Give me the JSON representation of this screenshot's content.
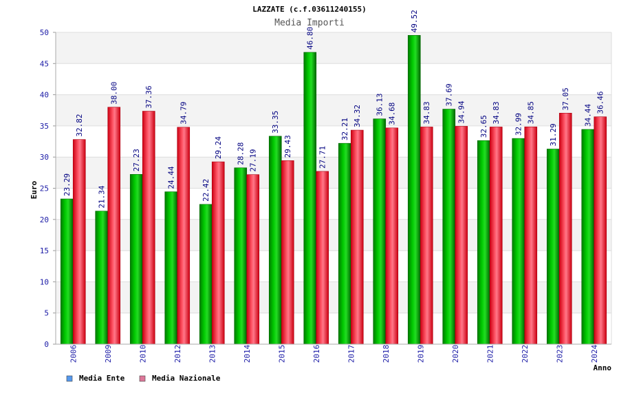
{
  "chart_data": {
    "type": "bar",
    "title": "LAZZATE (c.f.03611240155)",
    "subtitle": "Media Importi",
    "xlabel": "Anno",
    "ylabel": "Euro",
    "ylim": [
      0,
      50
    ],
    "yticks": [
      0,
      5,
      10,
      15,
      20,
      25,
      30,
      35,
      40,
      45,
      50
    ],
    "grid": true,
    "legend_position": "bottom-left",
    "categories": [
      "2006",
      "2009",
      "2010",
      "2012",
      "2013",
      "2014",
      "2015",
      "2016",
      "2017",
      "2018",
      "2019",
      "2020",
      "2021",
      "2022",
      "2023",
      "2024"
    ],
    "series": [
      {
        "name": "Media Ente",
        "color": "#00aa00",
        "legend_color": "#5599ee",
        "values": [
          23.29,
          21.34,
          27.23,
          24.44,
          22.42,
          28.28,
          33.35,
          46.8,
          32.21,
          36.13,
          49.52,
          37.69,
          32.65,
          32.99,
          31.29,
          34.44
        ],
        "labels": [
          "23.29",
          "21.34",
          "27.23",
          "24.44",
          "22.42",
          "28.28",
          "33.35",
          "46.80",
          "32.21",
          "36.13",
          "49.52",
          "37.69",
          "32.65",
          "32.99",
          "31.29",
          "34.44"
        ]
      },
      {
        "name": "Media Nazionale",
        "color": "#ee1122",
        "legend_color": "#dd7799",
        "values": [
          32.82,
          38.0,
          37.36,
          34.79,
          29.24,
          27.19,
          29.43,
          27.71,
          34.32,
          34.68,
          34.83,
          34.94,
          34.83,
          34.85,
          37.05,
          36.46
        ],
        "labels": [
          "32.82",
          "38.00",
          "37.36",
          "34.79",
          "29.24",
          "27.19",
          "29.43",
          "27.71",
          "34.32",
          "34.68",
          "34.83",
          "34.94",
          "34.83",
          "34.85",
          "37.05",
          "36.46"
        ]
      }
    ]
  }
}
